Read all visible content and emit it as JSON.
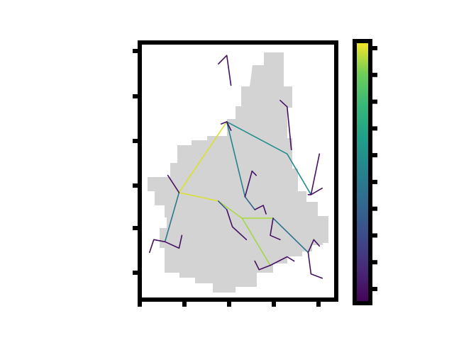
{
  "chart_data": {
    "type": "map-network",
    "title": "",
    "xlabel": "",
    "ylabel": "",
    "x_ticks": [
      "",
      "",
      "",
      "",
      ""
    ],
    "y_ticks": [
      "",
      "",
      "",
      "",
      "",
      ""
    ],
    "x_offset_label": "",
    "y_offset_label": "",
    "colorbar": {
      "colormap": "viridis",
      "tick_labels": [
        "",
        "",
        "",
        "",
        "",
        "",
        "",
        "",
        "",
        ""
      ],
      "min": 0,
      "max": 1
    },
    "network_edges": [
      {
        "points": [
          [
            0.62,
            0.37
          ],
          [
            0.28,
            0.7
          ]
        ],
        "value": 0.97
      },
      {
        "points": [
          [
            0.28,
            0.7
          ],
          [
            0.56,
            0.74
          ]
        ],
        "value": 0.97
      },
      {
        "points": [
          [
            0.56,
            0.74
          ],
          [
            0.73,
            0.82
          ],
          [
            0.95,
            0.82
          ]
        ],
        "value": 0.93
      },
      {
        "points": [
          [
            0.73,
            0.82
          ],
          [
            0.93,
            1.04
          ]
        ],
        "value": 0.92
      },
      {
        "points": [
          [
            0.62,
            0.37
          ],
          [
            1.05,
            0.52
          ],
          [
            1.22,
            0.71
          ]
        ],
        "value": 0.55
      },
      {
        "points": [
          [
            0.62,
            0.37
          ],
          [
            0.75,
            0.72
          ]
        ],
        "value": 0.5
      },
      {
        "points": [
          [
            0.28,
            0.7
          ],
          [
            0.18,
            0.93
          ]
        ],
        "value": 0.45
      },
      {
        "points": [
          [
            0.95,
            0.82
          ],
          [
            1.2,
            0.98
          ]
        ],
        "value": 0.42
      },
      {
        "points": [
          [
            0.75,
            0.72
          ],
          [
            0.82,
            0.78
          ]
        ],
        "value": 0.35
      },
      {
        "points": [
          [
            0.56,
            0.74
          ],
          [
            0.62,
            0.78
          ]
        ],
        "value": 0.3
      },
      {
        "points": [
          [
            0.56,
            0.1
          ],
          [
            0.62,
            0.06
          ],
          [
            0.65,
            0.2
          ]
        ],
        "value": 0.05
      },
      {
        "points": [
          [
            0.58,
            0.38
          ],
          [
            0.62,
            0.37
          ],
          [
            0.65,
            0.41
          ]
        ],
        "value": 0.05
      },
      {
        "points": [
          [
            1.0,
            0.27
          ],
          [
            1.05,
            0.3
          ],
          [
            1.08,
            0.5
          ]
        ],
        "value": 0.05
      },
      {
        "points": [
          [
            1.2,
            0.71
          ],
          [
            1.22,
            0.71
          ],
          [
            1.28,
            0.52
          ]
        ],
        "value": 0.05
      },
      {
        "points": [
          [
            0.75,
            0.72
          ],
          [
            0.8,
            0.6
          ],
          [
            0.83,
            0.62
          ]
        ],
        "value": 0.05
      },
      {
        "points": [
          [
            0.62,
            0.78
          ],
          [
            0.66,
            0.86
          ],
          [
            0.76,
            0.92
          ]
        ],
        "value": 0.05
      },
      {
        "points": [
          [
            0.82,
            0.78
          ],
          [
            0.88,
            0.76
          ],
          [
            0.9,
            0.8
          ]
        ],
        "value": 0.05
      },
      {
        "points": [
          [
            0.28,
            0.7
          ],
          [
            0.2,
            0.62
          ]
        ],
        "value": 0.05
      },
      {
        "points": [
          [
            0.18,
            0.93
          ],
          [
            0.1,
            0.92
          ],
          [
            0.07,
            0.98
          ]
        ],
        "value": 0.05
      },
      {
        "points": [
          [
            0.18,
            0.93
          ],
          [
            0.28,
            0.96
          ],
          [
            0.3,
            0.9
          ]
        ],
        "value": 0.05
      },
      {
        "points": [
          [
            0.95,
            0.82
          ],
          [
            0.93,
            0.9
          ],
          [
            1.0,
            0.92
          ]
        ],
        "value": 0.05
      },
      {
        "points": [
          [
            1.2,
            0.98
          ],
          [
            1.24,
            0.92
          ],
          [
            1.28,
            0.95
          ]
        ],
        "value": 0.05
      },
      {
        "points": [
          [
            0.93,
            1.04
          ],
          [
            0.85,
            1.06
          ],
          [
            0.82,
            1.02
          ]
        ],
        "value": 0.05
      },
      {
        "points": [
          [
            0.93,
            1.04
          ],
          [
            1.05,
            1.0
          ],
          [
            1.1,
            1.02
          ]
        ],
        "value": 0.05
      },
      {
        "points": [
          [
            1.2,
            0.98
          ],
          [
            1.22,
            1.08
          ],
          [
            1.3,
            1.1
          ]
        ],
        "value": 0.05
      },
      {
        "points": [
          [
            1.22,
            0.71
          ],
          [
            1.3,
            0.68
          ]
        ],
        "value": 0.05
      }
    ]
  }
}
